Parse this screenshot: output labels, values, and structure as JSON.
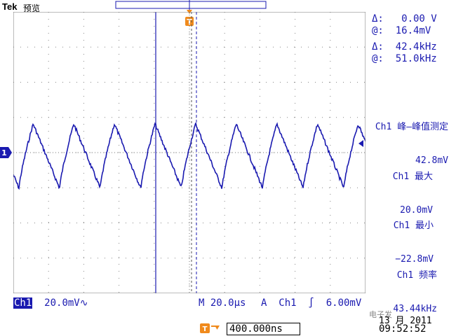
{
  "header": {
    "brand": "Tek",
    "mode": "预览"
  },
  "cursor_readouts": {
    "delta_v": "Δ:   0.00 V",
    "at_v": "@:  16.4mV",
    "delta_f": "Δ:  42.4kHz",
    "at_f": "@:  51.0kHz"
  },
  "measurements": [
    {
      "title": "Ch1 峰—峰值测定",
      "value": "42.8mV"
    },
    {
      "title": "Ch1 最大",
      "value": "20.0mV"
    },
    {
      "title": "Ch1 最小",
      "value": "−22.8mV"
    },
    {
      "title": "Ch1 频率",
      "value": "43.44kHz"
    }
  ],
  "status_bar": {
    "channel": "Ch1",
    "volts_div": "20.0mV∿",
    "timebase": "M 20.0µs",
    "trigger": "A  Ch1  ∫  6.00mV"
  },
  "trigger_position": "400.000ns",
  "date": "13 月 2011",
  "clock": "09:52:52",
  "watermark": "电子发",
  "markers": {
    "channel": "1",
    "trigger": "T"
  },
  "colors": {
    "trace": "#1a1ab0",
    "trigger": "#f08a1c",
    "grid": "#777777"
  }
}
